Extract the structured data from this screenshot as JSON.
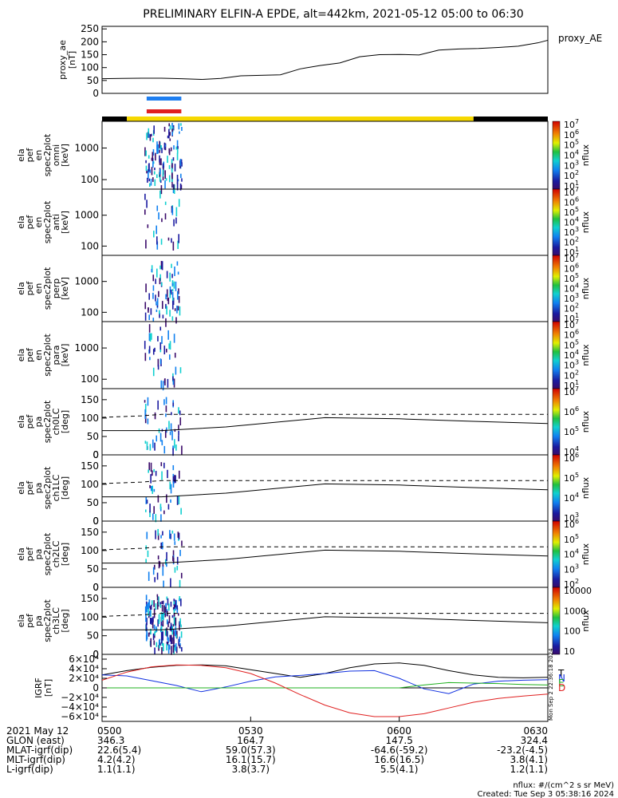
{
  "title": "PRELIMINARY ELFIN-A EPDE, alt=442km, 2021-05-12 05:00 to 06:30",
  "colors": {
    "science_bar_blue": "#1e7ef0",
    "science_bar_red": "#e02020",
    "status_yellow": "#f6d800",
    "status_black": "#000000",
    "igrf_x": "#e02020",
    "igrf_y": "#1030e0",
    "igrf_z": "#20b020",
    "igrf_total": "#000000"
  },
  "status_bar": {
    "segments": [
      {
        "state": "black",
        "start_min": 0,
        "end_min": 5
      },
      {
        "state": "yellow",
        "start_min": 5,
        "end_min": 75
      },
      {
        "state": "black",
        "start_min": 75,
        "end_min": 90
      }
    ],
    "science_blue": [
      9,
      16
    ],
    "science_red": [
      9,
      16
    ]
  },
  "chart_data": [
    {
      "type": "line",
      "panel": "proxy_ae",
      "ylabel": [
        "proxy_ae",
        "[nT]"
      ],
      "legend": "proxy_AE",
      "ylim": [
        0,
        260
      ],
      "yticks": [
        0,
        50,
        100,
        150,
        200,
        250
      ],
      "x": [
        0,
        4,
        8,
        12,
        16,
        20,
        24,
        28,
        32,
        36,
        40,
        44,
        48,
        52,
        56,
        60,
        64,
        68,
        72,
        76,
        80,
        84,
        88,
        90
      ],
      "values": [
        57,
        58,
        59,
        59,
        57,
        54,
        58,
        68,
        70,
        72,
        95,
        108,
        118,
        142,
        150,
        151,
        149,
        168,
        172,
        174,
        178,
        183,
        196,
        206
      ]
    },
    {
      "type": "heatmap",
      "panel": "omni",
      "ylabel": [
        "ela",
        "pef",
        "en",
        "spec2plot",
        "omni",
        "[keV]"
      ],
      "ylim": [
        50,
        7000
      ],
      "yscale": "log",
      "yticks": [
        100,
        1000
      ],
      "colorbar": {
        "label": "nflux",
        "ticks": [
          "10^1",
          "10^2",
          "10^3",
          "10^4",
          "10^5",
          "10^6",
          "10^7"
        ]
      }
    },
    {
      "type": "heatmap",
      "panel": "anti",
      "ylabel": [
        "ela",
        "pef",
        "en",
        "spec2plot",
        "anti",
        "[keV]"
      ],
      "ylim": [
        50,
        7000
      ],
      "yscale": "log",
      "yticks": [
        100,
        1000
      ],
      "colorbar": {
        "label": "nflux",
        "ticks": [
          "10^1",
          "10^2",
          "10^3",
          "10^4",
          "10^5",
          "10^6",
          "10^7"
        ]
      }
    },
    {
      "type": "heatmap",
      "panel": "perp",
      "ylabel": [
        "ela",
        "pef",
        "en",
        "spec2plot",
        "perp",
        "[keV]"
      ],
      "ylim": [
        50,
        7000
      ],
      "yscale": "log",
      "yticks": [
        100,
        1000
      ],
      "colorbar": {
        "label": "nflux",
        "ticks": [
          "10^1",
          "10^2",
          "10^3",
          "10^4",
          "10^5",
          "10^6",
          "10^7"
        ]
      }
    },
    {
      "type": "heatmap",
      "panel": "para",
      "ylabel": [
        "ela",
        "pef",
        "en",
        "spec2plot",
        "para",
        "[keV]"
      ],
      "ylim": [
        50,
        7000
      ],
      "yscale": "log",
      "yticks": [
        100,
        1000
      ],
      "colorbar": {
        "label": "nflux",
        "ticks": [
          "10^1",
          "10^2",
          "10^3",
          "10^4",
          "10^5",
          "10^6",
          "10^7"
        ]
      }
    },
    {
      "type": "heatmap",
      "panel": "pa_ch0LC",
      "ylabel": [
        "ela",
        "pef",
        "pa",
        "spec2plot",
        "ch0LC",
        "[deg]"
      ],
      "ylim": [
        0,
        180
      ],
      "yticks": [
        0,
        50,
        100,
        150
      ],
      "colorbar": {
        "label": "nflux",
        "ticks": [
          "10^4",
          "10^5",
          "10^6",
          "10^7"
        ]
      }
    },
    {
      "type": "heatmap",
      "panel": "pa_ch1LC",
      "ylabel": [
        "ela",
        "pef",
        "pa",
        "spec2plot",
        "ch1LC",
        "[deg]"
      ],
      "ylim": [
        0,
        180
      ],
      "yticks": [
        0,
        50,
        100,
        150
      ],
      "colorbar": {
        "label": "nflux",
        "ticks": [
          "10^3",
          "10^4",
          "10^5",
          "10^6"
        ]
      }
    },
    {
      "type": "heatmap",
      "panel": "pa_ch2LC",
      "ylabel": [
        "ela",
        "pef",
        "pa",
        "spec2plot",
        "ch2LC",
        "[deg]"
      ],
      "ylim": [
        0,
        180
      ],
      "yticks": [
        0,
        50,
        100,
        150
      ],
      "colorbar": {
        "label": "nflux",
        "ticks": [
          "10^2",
          "10^3",
          "10^4",
          "10^5",
          "10^6"
        ]
      }
    },
    {
      "type": "heatmap",
      "panel": "pa_ch3LC",
      "ylabel": [
        "ela",
        "pef",
        "pa",
        "spec2plot",
        "ch3LC",
        "[deg]"
      ],
      "ylim": [
        0,
        180
      ],
      "yticks": [
        0,
        50,
        100,
        150
      ],
      "colorbar": {
        "label": "nflux",
        "ticks": [
          "10",
          "100",
          "1000",
          "10000"
        ]
      }
    },
    {
      "type": "line",
      "panel": "igrf",
      "ylabel": [
        "IGRF",
        "[nT]"
      ],
      "ylim": [
        -70000,
        70000
      ],
      "yticks": [
        -60000,
        -40000,
        -20000,
        0,
        20000,
        40000,
        60000
      ],
      "ytick_labels": [
        "−6×10⁴",
        "−4×10⁴",
        "−2×10⁴",
        "0",
        "2×10⁴",
        "4×10⁴",
        "6×10⁴"
      ],
      "x": [
        0,
        5,
        10,
        15,
        20,
        25,
        30,
        35,
        40,
        45,
        50,
        55,
        60,
        65,
        70,
        75,
        80,
        85,
        90
      ],
      "series": [
        {
          "name": "T",
          "values": [
            27000,
            36000,
            43000,
            47000,
            48000,
            46000,
            38000,
            30000,
            22000,
            30000,
            42000,
            50000,
            52000,
            47000,
            36000,
            27000,
            22000,
            21000,
            22000
          ]
        },
        {
          "name": "N",
          "values": [
            27000,
            25000,
            15000,
            5000,
            -8000,
            2000,
            14000,
            23000,
            26000,
            30000,
            35000,
            36000,
            20000,
            -2000,
            -12000,
            8000,
            14000,
            16000,
            17000
          ]
        },
        {
          "name": "E",
          "values": [
            100,
            100,
            100,
            0,
            0,
            0,
            0,
            0,
            0,
            0,
            0,
            0,
            0,
            6000,
            11000,
            10000,
            9000,
            7000,
            6000
          ]
        },
        {
          "name": "D",
          "values": [
            16000,
            33000,
            44000,
            48000,
            47000,
            42000,
            30000,
            10000,
            -14000,
            -36000,
            -52000,
            -60000,
            -60000,
            -54000,
            -42000,
            -30000,
            -22000,
            -17000,
            -13000
          ]
        }
      ]
    }
  ],
  "igrf_legend": [
    "T",
    "N",
    "E",
    "D"
  ],
  "igrf_right_note": "Mon Sep  2 22:36:18 2024",
  "pa_dashed_level": 110,
  "pa_solid_level_start": 66,
  "pa_solid_level_peak": 113,
  "xaxis": {
    "ticks": [
      {
        "t": 0,
        "label": "0500"
      },
      {
        "t": 30,
        "label": "0530"
      },
      {
        "t": 60,
        "label": "0600"
      },
      {
        "t": 90,
        "label": "0630"
      }
    ]
  },
  "info_rows": [
    {
      "label": "2021 May 12",
      "v0": "0500",
      "v1": "0530",
      "v2": "0600",
      "v3": "0630"
    },
    {
      "label": "GLON (east)",
      "v0": "346.3",
      "v1": "164.7",
      "v2": "147.5",
      "v3": "324.4"
    },
    {
      "label": "MLAT-igrf(dip)",
      "v0": "22.6(5.4)",
      "v1": "59.0(57.3)",
      "v2": "-64.6(-59.2)",
      "v3": "-23.2(-4.5)"
    },
    {
      "label": "MLT-igrf(dip)",
      "v0": "4.2(4.2)",
      "v1": "16.1(15.7)",
      "v2": "16.6(16.5)",
      "v3": "3.8(4.1)"
    },
    {
      "label": "L-igrf(dip)",
      "v0": "1.1(1.1)",
      "v1": "3.8(3.7)",
      "v2": "5.5(4.1)",
      "v3": "1.2(1.1)"
    }
  ],
  "footer": {
    "units": "nflux: #/(cm^2 s sr MeV)",
    "created": "Created: Tue Sep  3 05:38:16 2024"
  }
}
